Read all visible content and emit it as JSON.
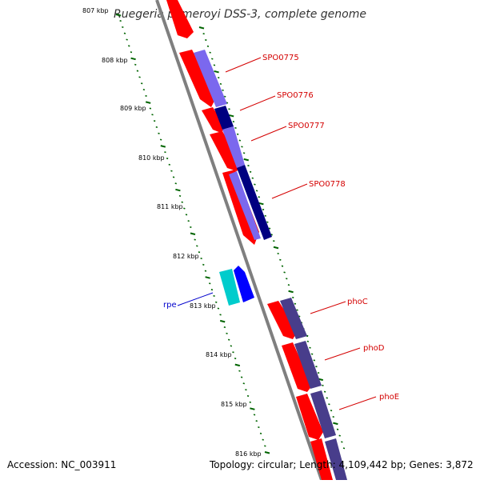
{
  "title": "Ruegeria pomeroyi DSS-3, complete genome",
  "accession": "Accession: NC_003911",
  "topology": "Topology: circular; Length: 4,109,442 bp; Genes: 3,872",
  "colors": {
    "backbone": "#7f7f7f",
    "cds": "#ff0000",
    "tick": "#006400",
    "label_red": "#d40000",
    "label_blue": "#0000cc",
    "blue_light": "#7b68ee",
    "blue_dark": "#000080",
    "slate": "#483d8b",
    "cyan": "#00cccc",
    "blue": "#0000ff"
  },
  "kbp_labels": [
    "807 kbp",
    "808 kbp",
    "809 kbp",
    "810 kbp",
    "811 kbp",
    "812 kbp",
    "813 kbp",
    "814 kbp",
    "815 kbp",
    "816 kbp"
  ],
  "gene_labels": [
    "SPO0775",
    "SPO0776",
    "SPO0777",
    "SPO0778",
    "phoC",
    "phoD",
    "phoE",
    "rpe"
  ]
}
